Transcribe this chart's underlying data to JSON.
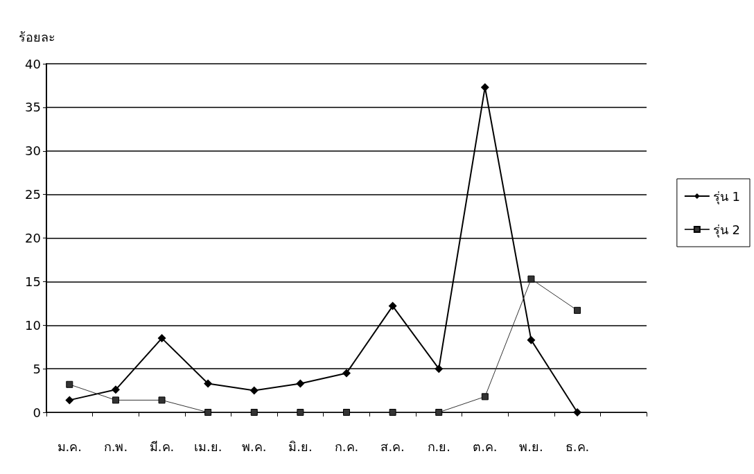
{
  "chart_data": {
    "type": "line",
    "ylabel": "ร้อยละ",
    "categories": [
      "ม.ค.",
      "ก.พ.",
      "มี.ค.",
      "เม.ย.",
      "พ.ค.",
      "มิ.ย.",
      "ก.ค.",
      "ส.ค.",
      "ก.ย.",
      "ต.ค.",
      "พ.ย.",
      "ธ.ค.",
      null
    ],
    "series": [
      {
        "name": "รุ่น 1",
        "color": "#000000",
        "marker": "diamond",
        "values": [
          1.4,
          2.6,
          8.5,
          3.3,
          2.5,
          3.3,
          4.5,
          12.2,
          5,
          37.3,
          8.3,
          0,
          null
        ]
      },
      {
        "name": "รุ่น 2",
        "color": "#333333",
        "marker": "square",
        "values": [
          3.2,
          1.4,
          1.4,
          0,
          0,
          0,
          0,
          0,
          0,
          1.8,
          15.3,
          11.7,
          null
        ]
      }
    ],
    "ylim": [
      0,
      40
    ],
    "yticks": [
      0,
      5,
      10,
      15,
      20,
      25,
      30,
      35,
      40
    ],
    "grid": "y",
    "legend": "right"
  }
}
